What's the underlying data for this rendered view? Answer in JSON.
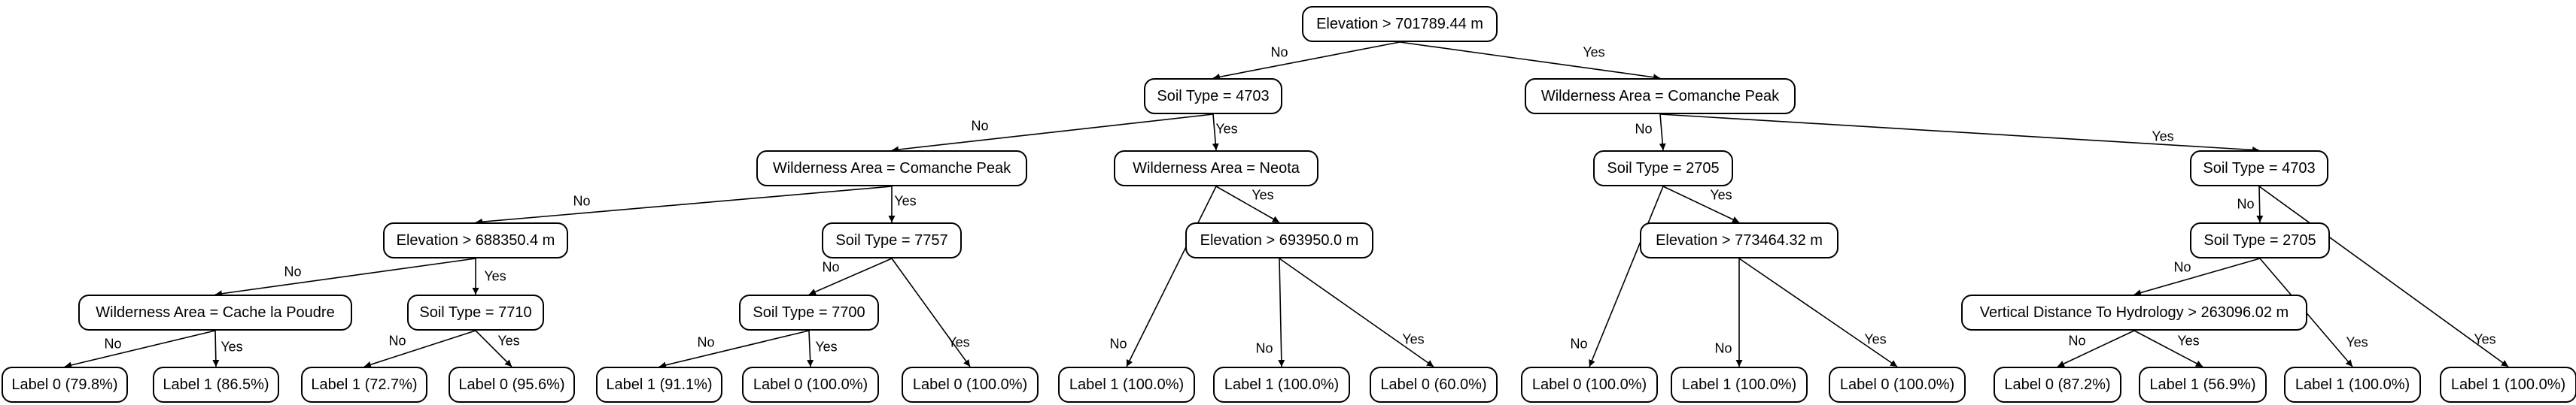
{
  "tree": {
    "nodes": {
      "root": "Elevation > 701789.44 m",
      "n1": "Soil Type = 4703",
      "n2": "Wilderness Area = Comanche Peak",
      "n3": "Wilderness Area = Comanche Peak",
      "n4": "Wilderness Area = Neota",
      "n5": "Soil Type = 2705",
      "n6": "Soil Type = 4703",
      "n7": "Elevation > 688350.4 m",
      "n8": "Soil Type = 7757",
      "n9": "Elevation > 693950.0 m",
      "n10": "Elevation > 773464.32 m",
      "n11": "Soil Type = 2705",
      "n12": "Wilderness Area = Cache la Poudre",
      "n13": "Soil Type = 7710",
      "n14": "Soil Type = 7700",
      "n15": "Vertical Distance To Hydrology > 263096.02 m",
      "l1": "Label 0 (79.8%)",
      "l2": "Label 1 (86.5%)",
      "l3": "Label 1 (72.7%)",
      "l4": "Label 0 (95.6%)",
      "l5": "Label 1 (91.1%)",
      "l6": "Label 0 (100.0%)",
      "l7": "Label 0 (100.0%)",
      "l8": "Label 1 (100.0%)",
      "l9": "Label 1 (100.0%)",
      "l10": "Label 0 (60.0%)",
      "l11": "Label 0 (100.0%)",
      "l12": "Label 1 (100.0%)",
      "l13": "Label 0 (100.0%)",
      "l14": "Label 0 (87.2%)",
      "l15": "Label 1 (56.9%)",
      "l16": "Label 1 (100.0%)",
      "l17": "Label 1 (100.0%)"
    },
    "edges": [
      {
        "from": "root",
        "to": "n1",
        "label": "No"
      },
      {
        "from": "root",
        "to": "n2",
        "label": "Yes"
      },
      {
        "from": "n1",
        "to": "n3",
        "label": "No"
      },
      {
        "from": "n1",
        "to": "n4",
        "label": "Yes"
      },
      {
        "from": "n2",
        "to": "n5",
        "label": "No"
      },
      {
        "from": "n2",
        "to": "n6",
        "label": "Yes"
      },
      {
        "from": "n3",
        "to": "n7",
        "label": "No"
      },
      {
        "from": "n3",
        "to": "n8",
        "label": "Yes"
      },
      {
        "from": "n4",
        "to": "l8",
        "label": "No"
      },
      {
        "from": "n4",
        "to": "n9",
        "label": "Yes"
      },
      {
        "from": "n5",
        "to": "l11",
        "label": "No"
      },
      {
        "from": "n5",
        "to": "n10",
        "label": "Yes"
      },
      {
        "from": "n6",
        "to": "n11",
        "label": "No"
      },
      {
        "from": "n6",
        "to": "l17",
        "label": "Yes"
      },
      {
        "from": "n7",
        "to": "n12",
        "label": "No"
      },
      {
        "from": "n7",
        "to": "n13",
        "label": "Yes"
      },
      {
        "from": "n8",
        "to": "n14",
        "label": "No"
      },
      {
        "from": "n8",
        "to": "l7",
        "label": "Yes"
      },
      {
        "from": "n9",
        "to": "l9",
        "label": "No"
      },
      {
        "from": "n9",
        "to": "l10",
        "label": "Yes"
      },
      {
        "from": "n10",
        "to": "l12",
        "label": "No"
      },
      {
        "from": "n10",
        "to": "l13",
        "label": "Yes"
      },
      {
        "from": "n11",
        "to": "n15",
        "label": "No"
      },
      {
        "from": "n11",
        "to": "l16",
        "label": "Yes"
      },
      {
        "from": "n12",
        "to": "l1",
        "label": "No"
      },
      {
        "from": "n12",
        "to": "l2",
        "label": "Yes"
      },
      {
        "from": "n13",
        "to": "l3",
        "label": "No"
      },
      {
        "from": "n13",
        "to": "l4",
        "label": "Yes"
      },
      {
        "from": "n14",
        "to": "l5",
        "label": "No"
      },
      {
        "from": "n14",
        "to": "l6",
        "label": "Yes"
      },
      {
        "from": "n15",
        "to": "l14",
        "label": "No"
      },
      {
        "from": "n15",
        "to": "l15",
        "label": "Yes"
      }
    ]
  }
}
